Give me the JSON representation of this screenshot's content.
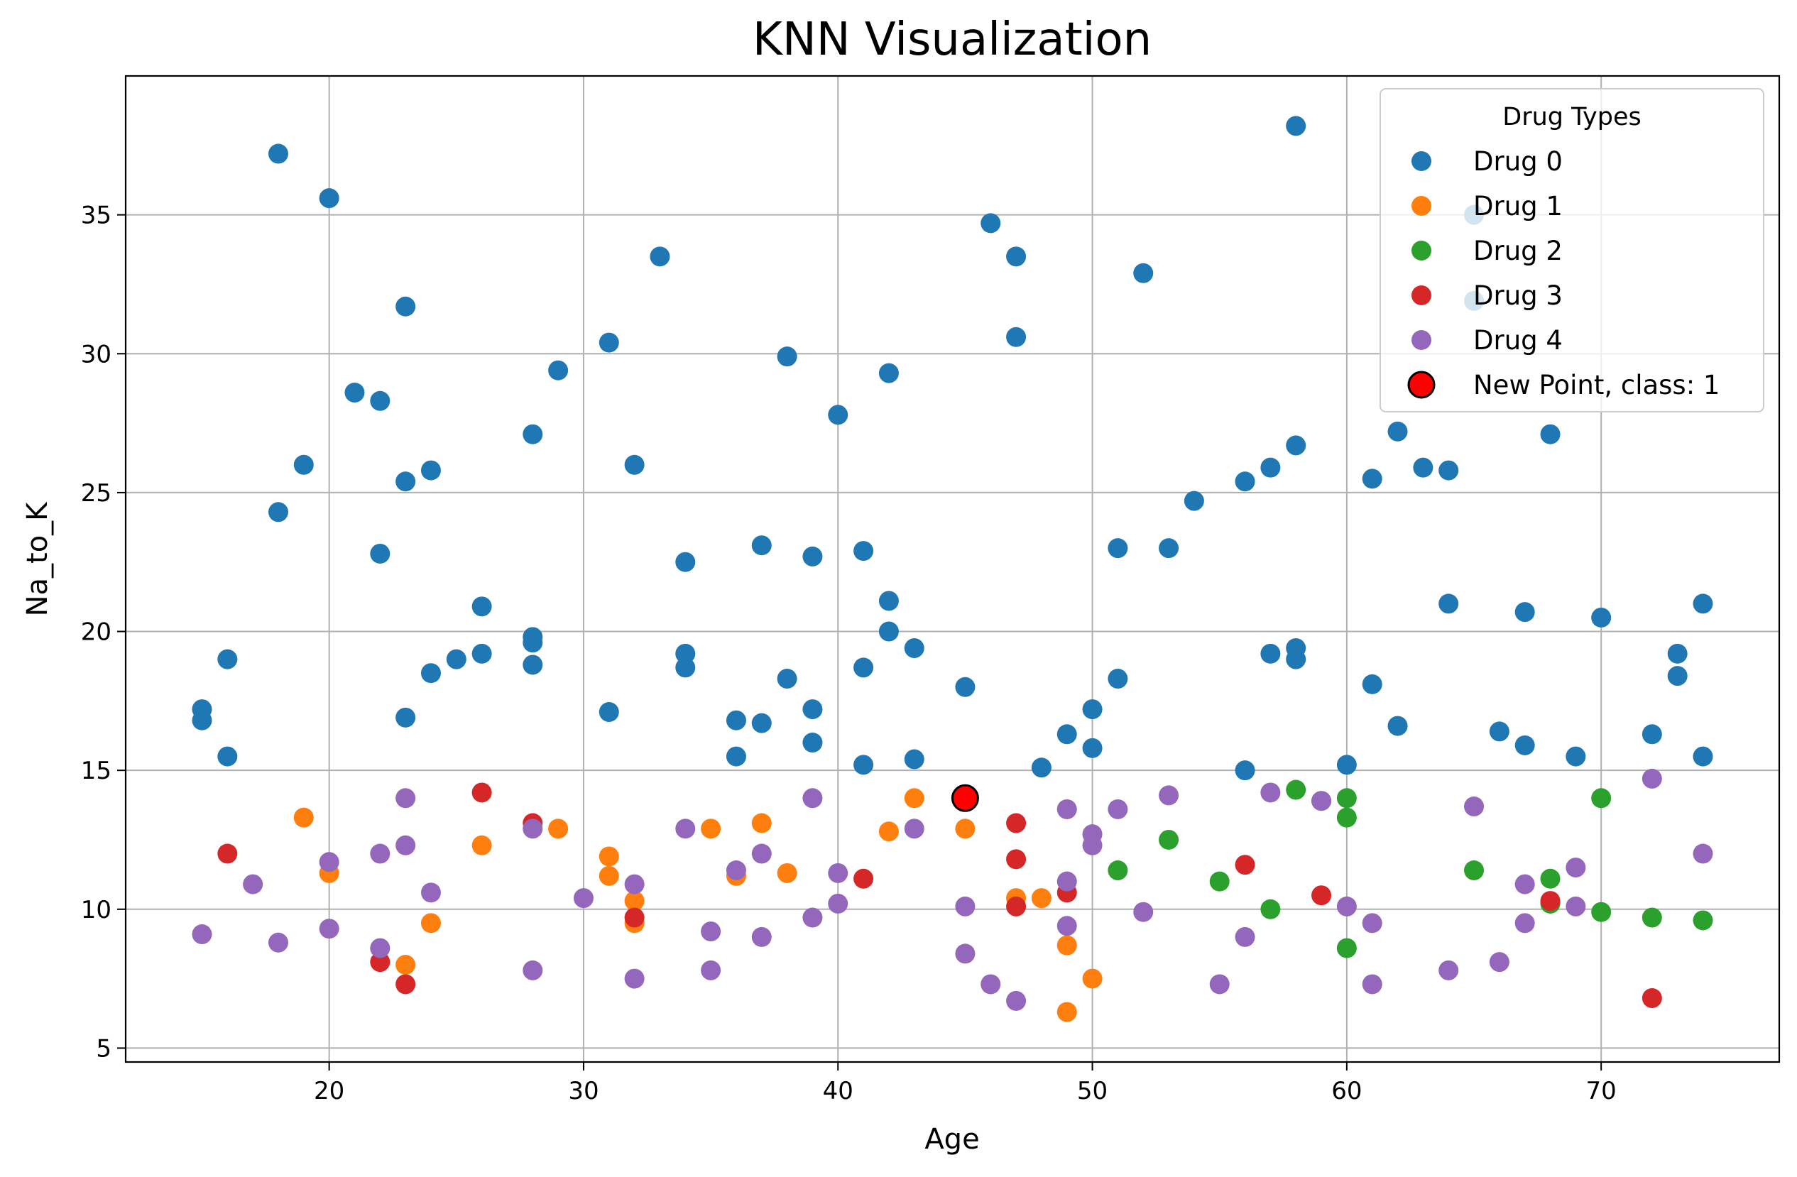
{
  "chart_data": {
    "type": "scatter",
    "title": "KNN Visualization",
    "xlabel": "Age",
    "ylabel": "Na_to_K",
    "xlim": [
      12,
      77
    ],
    "ylim": [
      4.5,
      40
    ],
    "xticks": [
      20,
      30,
      40,
      50,
      60,
      70
    ],
    "yticks": [
      5,
      10,
      15,
      20,
      25,
      30,
      35
    ],
    "grid": true,
    "legend": {
      "title": "Drug Types",
      "position": "top-right"
    },
    "series": [
      {
        "name": "Drug 0",
        "color": "#1f77b4",
        "points": [
          [
            18,
            37.2
          ],
          [
            20,
            35.6
          ],
          [
            23,
            31.7
          ],
          [
            21,
            28.6
          ],
          [
            22,
            28.3
          ],
          [
            29,
            29.4
          ],
          [
            31,
            30.4
          ],
          [
            33,
            33.5
          ],
          [
            38,
            29.9
          ],
          [
            40,
            27.8
          ],
          [
            42,
            29.3
          ],
          [
            46,
            34.7
          ],
          [
            47,
            33.5
          ],
          [
            47,
            30.6
          ],
          [
            52,
            32.9
          ],
          [
            58,
            38.2
          ],
          [
            65,
            35.0
          ],
          [
            65,
            31.9
          ],
          [
            19,
            26.0
          ],
          [
            18,
            24.3
          ],
          [
            23,
            25.4
          ],
          [
            24,
            25.8
          ],
          [
            28,
            27.1
          ],
          [
            32,
            26.0
          ],
          [
            22,
            22.8
          ],
          [
            26,
            20.9
          ],
          [
            28,
            19.8
          ],
          [
            28,
            19.6
          ],
          [
            26,
            19.2
          ],
          [
            25,
            19.0
          ],
          [
            24,
            18.5
          ],
          [
            28,
            18.8
          ],
          [
            16,
            19.0
          ],
          [
            15,
            17.2
          ],
          [
            15,
            16.8
          ],
          [
            16,
            15.5
          ],
          [
            23,
            16.9
          ],
          [
            31,
            17.1
          ],
          [
            34,
            22.5
          ],
          [
            34,
            19.2
          ],
          [
            34,
            18.7
          ],
          [
            37,
            23.1
          ],
          [
            39,
            22.7
          ],
          [
            41,
            22.9
          ],
          [
            42,
            21.1
          ],
          [
            42,
            20.0
          ],
          [
            43,
            19.4
          ],
          [
            41,
            18.7
          ],
          [
            38,
            18.3
          ],
          [
            39,
            17.2
          ],
          [
            36,
            16.8
          ],
          [
            37,
            16.7
          ],
          [
            36,
            15.5
          ],
          [
            39,
            16.0
          ],
          [
            41,
            15.2
          ],
          [
            43,
            15.4
          ],
          [
            45,
            18.0
          ],
          [
            48,
            15.1
          ],
          [
            49,
            16.3
          ],
          [
            50,
            17.2
          ],
          [
            50,
            15.8
          ],
          [
            51,
            18.3
          ],
          [
            51,
            23.0
          ],
          [
            53,
            23.0
          ],
          [
            54,
            24.7
          ],
          [
            56,
            25.4
          ],
          [
            57,
            25.9
          ],
          [
            58,
            26.7
          ],
          [
            57,
            19.2
          ],
          [
            58,
            19.4
          ],
          [
            58,
            19.0
          ],
          [
            56,
            15.0
          ],
          [
            60,
            15.2
          ],
          [
            61,
            25.5
          ],
          [
            62,
            27.2
          ],
          [
            63,
            25.9
          ],
          [
            64,
            25.8
          ],
          [
            61,
            18.1
          ],
          [
            62,
            16.6
          ],
          [
            64,
            21.0
          ],
          [
            67,
            20.7
          ],
          [
            66,
            16.4
          ],
          [
            67,
            15.9
          ],
          [
            68,
            27.1
          ],
          [
            69,
            15.5
          ],
          [
            70,
            20.5
          ],
          [
            72,
            16.3
          ],
          [
            73,
            19.2
          ],
          [
            73,
            18.4
          ],
          [
            74,
            21.0
          ],
          [
            74,
            15.5
          ]
        ]
      },
      {
        "name": "Drug 1",
        "color": "#ff7f0e",
        "points": [
          [
            19,
            13.3
          ],
          [
            20,
            11.3
          ],
          [
            24,
            9.5
          ],
          [
            23,
            8.0
          ],
          [
            26,
            12.3
          ],
          [
            29,
            12.9
          ],
          [
            31,
            11.9
          ],
          [
            31,
            11.2
          ],
          [
            32,
            10.3
          ],
          [
            32,
            9.5
          ],
          [
            35,
            12.9
          ],
          [
            37,
            13.1
          ],
          [
            36,
            11.2
          ],
          [
            38,
            11.3
          ],
          [
            42,
            12.8
          ],
          [
            43,
            14.0
          ],
          [
            45,
            12.9
          ],
          [
            47,
            10.4
          ],
          [
            48,
            10.4
          ],
          [
            49,
            8.7
          ],
          [
            49,
            6.3
          ],
          [
            50,
            7.5
          ]
        ]
      },
      {
        "name": "Drug 2",
        "color": "#2ca02c",
        "points": [
          [
            51,
            11.4
          ],
          [
            53,
            12.5
          ],
          [
            55,
            11.0
          ],
          [
            57,
            10.0
          ],
          [
            58,
            14.3
          ],
          [
            59,
            13.9
          ],
          [
            60,
            14.0
          ],
          [
            60,
            13.3
          ],
          [
            60,
            8.6
          ],
          [
            65,
            11.4
          ],
          [
            68,
            11.1
          ],
          [
            68,
            10.2
          ],
          [
            70,
            14.0
          ],
          [
            70,
            9.9
          ],
          [
            72,
            9.7
          ],
          [
            74,
            9.6
          ]
        ]
      },
      {
        "name": "Drug 3",
        "color": "#d62728",
        "points": [
          [
            16,
            12.0
          ],
          [
            22,
            8.1
          ],
          [
            23,
            7.3
          ],
          [
            26,
            14.2
          ],
          [
            28,
            13.1
          ],
          [
            32,
            9.7
          ],
          [
            41,
            11.1
          ],
          [
            47,
            13.1
          ],
          [
            47,
            11.8
          ],
          [
            47,
            10.1
          ],
          [
            49,
            10.6
          ],
          [
            56,
            11.6
          ],
          [
            59,
            10.5
          ],
          [
            68,
            10.3
          ],
          [
            72,
            6.8
          ]
        ]
      },
      {
        "name": "Drug 4",
        "color": "#9467bd",
        "points": [
          [
            15,
            9.1
          ],
          [
            17,
            10.9
          ],
          [
            18,
            8.8
          ],
          [
            20,
            11.7
          ],
          [
            20,
            9.3
          ],
          [
            22,
            12.0
          ],
          [
            22,
            8.6
          ],
          [
            23,
            14.0
          ],
          [
            23,
            12.3
          ],
          [
            24,
            10.6
          ],
          [
            28,
            12.9
          ],
          [
            28,
            7.8
          ],
          [
            30,
            10.4
          ],
          [
            32,
            10.9
          ],
          [
            32,
            7.5
          ],
          [
            34,
            12.9
          ],
          [
            35,
            9.2
          ],
          [
            35,
            7.8
          ],
          [
            36,
            11.4
          ],
          [
            37,
            12.0
          ],
          [
            37,
            9.0
          ],
          [
            39,
            14.0
          ],
          [
            39,
            9.7
          ],
          [
            40,
            11.3
          ],
          [
            40,
            10.2
          ],
          [
            43,
            12.9
          ],
          [
            45,
            10.1
          ],
          [
            45,
            8.4
          ],
          [
            46,
            7.3
          ],
          [
            47,
            6.7
          ],
          [
            49,
            13.6
          ],
          [
            49,
            11.0
          ],
          [
            49,
            9.4
          ],
          [
            50,
            12.7
          ],
          [
            50,
            12.3
          ],
          [
            51,
            13.6
          ],
          [
            52,
            9.9
          ],
          [
            53,
            14.1
          ],
          [
            55,
            7.3
          ],
          [
            56,
            9.0
          ],
          [
            57,
            14.2
          ],
          [
            59,
            13.9
          ],
          [
            60,
            10.1
          ],
          [
            61,
            9.5
          ],
          [
            61,
            7.3
          ],
          [
            64,
            7.8
          ],
          [
            65,
            13.7
          ],
          [
            66,
            8.1
          ],
          [
            67,
            10.9
          ],
          [
            67,
            9.5
          ],
          [
            69,
            11.5
          ],
          [
            69,
            10.1
          ],
          [
            72,
            14.7
          ],
          [
            74,
            12.0
          ]
        ]
      }
    ],
    "new_point": {
      "label": "New Point, class: 1",
      "x": 45,
      "y": 14.0,
      "color": "#ff0000",
      "edge_color": "#000000"
    }
  }
}
